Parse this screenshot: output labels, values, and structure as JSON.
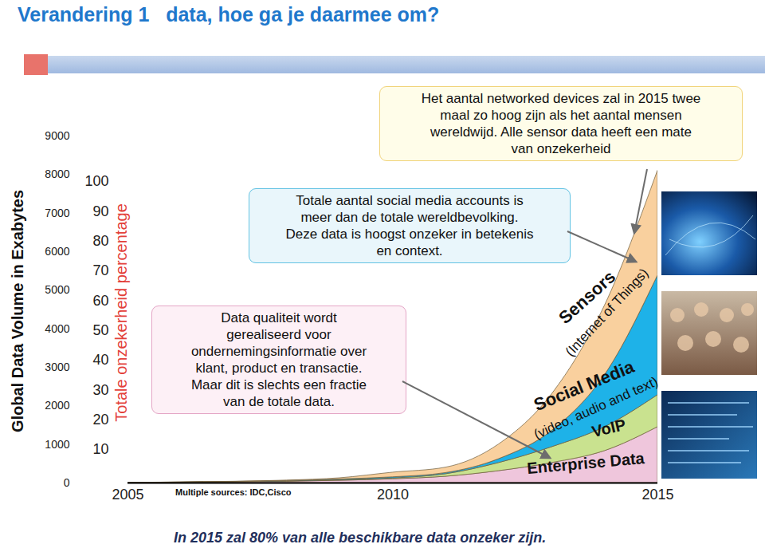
{
  "chart_data": {
    "type": "area",
    "stacked": true,
    "title": "Verandering 1   data, hoe ga je daarmee om?",
    "y_label": "Global Data Volume in Exabytes",
    "y2_label": "Totale onzekerheid percentage",
    "caption": "In 2015 zal 80% van alle beschikbare data onzeker zijn.",
    "source": "Multiple sources: IDC,Cisco",
    "x": [
      2005,
      2006,
      2007,
      2008,
      2009,
      2010,
      2011,
      2012,
      2013,
      2014,
      2015
    ],
    "xlim": [
      2005,
      2015
    ],
    "xticks": [
      2005,
      2010,
      2015
    ],
    "ylim": [
      0,
      9000
    ],
    "yticks": [
      0,
      1000,
      2000,
      3000,
      4000,
      5000,
      6000,
      7000,
      8000,
      9000
    ],
    "y2lim": [
      10,
      100
    ],
    "y2ticks": [
      10,
      20,
      30,
      40,
      50,
      60,
      70,
      80,
      90,
      100
    ],
    "grid": false,
    "series": [
      {
        "name": "Enterprise Data",
        "color": "#efc6dc",
        "values": [
          5,
          10,
          20,
          35,
          60,
          100,
          165,
          310,
          520,
          830,
          1450
        ]
      },
      {
        "name": "VoIP",
        "color": "#c9e28f",
        "values": [
          0,
          2,
          5,
          8,
          15,
          20,
          65,
          210,
          410,
          620,
          830
        ]
      },
      {
        "name": "Social Media",
        "color": "#1eb2e8",
        "values": [
          0,
          2,
          5,
          10,
          20,
          30,
          30,
          100,
          420,
          1350,
          3100
        ]
      },
      {
        "name": "Sensors",
        "color": "#f9d09e",
        "values": [
          0,
          3,
          5,
          12,
          30,
          120,
          140,
          380,
          950,
          1800,
          2720
        ]
      }
    ],
    "annotations": [
      "Het aantal networked devices zal in 2015 twee\nmaal zo hoog zijn als het aantal mensen\nwereldwijd. Alle sensor data heeft een mate\nvan onzekerheid",
      "Totale aantal  social media accounts is\nmeer dan de totale wereldbevolking.\nDeze data is hoogst onzeker in betekenis\nen context.",
      "Data  qualiteit  wordt\ngerealiseerd voor\nondernemingsinformatie  over\nklant, product en transactie.\nMaar dit is slechts een fractie\nvan de totale data.",
      "(Internet of Things)",
      "(video, audio and text)"
    ]
  }
}
